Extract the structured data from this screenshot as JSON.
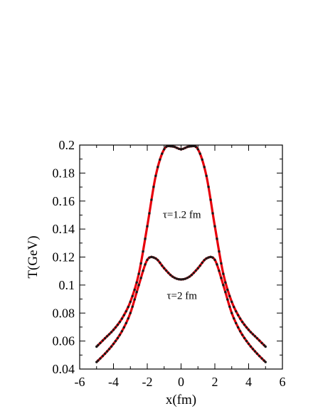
{
  "chart_data": {
    "type": "line",
    "xlabel": "x(fm)",
    "ylabel": "T(GeV)",
    "xlim": [
      -6,
      6
    ],
    "ylim": [
      0.04,
      0.2
    ],
    "xticks": [
      -6,
      -4,
      -2,
      0,
      2,
      4,
      6
    ],
    "xtick_labels": [
      "-6",
      "-4",
      "-2",
      "0",
      "2",
      "4",
      "6"
    ],
    "yticks": [
      0.04,
      0.06,
      0.08,
      0.1,
      0.12,
      0.14,
      0.16,
      0.18,
      0.2
    ],
    "ytick_labels": [
      "0.04",
      "0.06",
      "0.08",
      "0.1",
      "0.12",
      "0.14",
      "0.16",
      "0.18",
      "0.2"
    ],
    "grid": false,
    "line_color": "#e8000b",
    "marker_color": "#1a1a1a",
    "annotations": [
      {
        "text": "τ=1.2 fm",
        "x": 0.05,
        "y": 0.148
      },
      {
        "text": "τ=2 fm",
        "x": 0.05,
        "y": 0.09
      }
    ],
    "series": [
      {
        "x": [
          -5,
          -4.5,
          -4,
          -3.5,
          -3,
          -2.5,
          -2,
          -1.5,
          -1,
          -0.5,
          0,
          0.5,
          1,
          1.5,
          2,
          2.5,
          3,
          3.5,
          4,
          4.5,
          5
        ],
        "values": [
          0.056,
          0.062,
          0.068,
          0.076,
          0.088,
          0.108,
          0.142,
          0.178,
          0.197,
          0.199,
          0.197,
          0.199,
          0.197,
          0.178,
          0.142,
          0.108,
          0.088,
          0.076,
          0.068,
          0.062,
          0.056
        ]
      },
      {
        "x": [
          -5,
          -4.5,
          -4,
          -3.5,
          -3,
          -2.5,
          -2,
          -1.5,
          -1,
          -0.5,
          0,
          0.5,
          1,
          1.5,
          2,
          2.5,
          3,
          3.5,
          4,
          4.5,
          5
        ],
        "values": [
          0.045,
          0.051,
          0.058,
          0.067,
          0.08,
          0.1,
          0.118,
          0.119,
          0.112,
          0.106,
          0.104,
          0.106,
          0.112,
          0.119,
          0.118,
          0.1,
          0.08,
          0.067,
          0.058,
          0.051,
          0.045
        ]
      }
    ]
  }
}
